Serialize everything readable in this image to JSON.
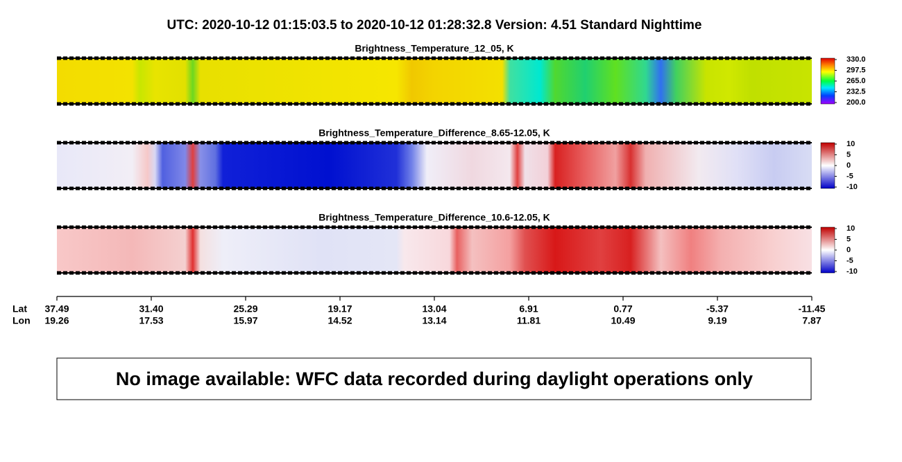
{
  "header": {
    "title": "UTC:  2020-10-12   01:15:03.5  to  2020-10-12   01:28:32.8    Version: 4.51  Standard Nighttime"
  },
  "panels": [
    {
      "title": "Brightness_Temperature_12_05, K",
      "colorbar_ticks": [
        "330.0",
        "297.5",
        "265.0",
        "232.5",
        "200.0"
      ]
    },
    {
      "title": "Brightness_Temperature_Difference_8.65-12.05, K",
      "colorbar_ticks": [
        "10",
        "5",
        "0",
        "-5",
        "-10"
      ]
    },
    {
      "title": "Brightness_Temperature_Difference_10.6-12.05, K",
      "colorbar_ticks": [
        "10",
        "5",
        "0",
        "-5",
        "-10"
      ]
    }
  ],
  "axis": {
    "lat_label": "Lat",
    "lon_label": "Lon",
    "lat": [
      "37.49",
      "31.40",
      "25.29",
      "19.17",
      "13.04",
      "6.91",
      "0.77",
      "-5.37",
      "-11.45"
    ],
    "lon": [
      "19.26",
      "17.53",
      "15.97",
      "14.52",
      "13.14",
      "11.81",
      "10.49",
      "9.19",
      "7.87"
    ]
  },
  "notice": "No image available: WFC data recorded during daylight operations only"
}
